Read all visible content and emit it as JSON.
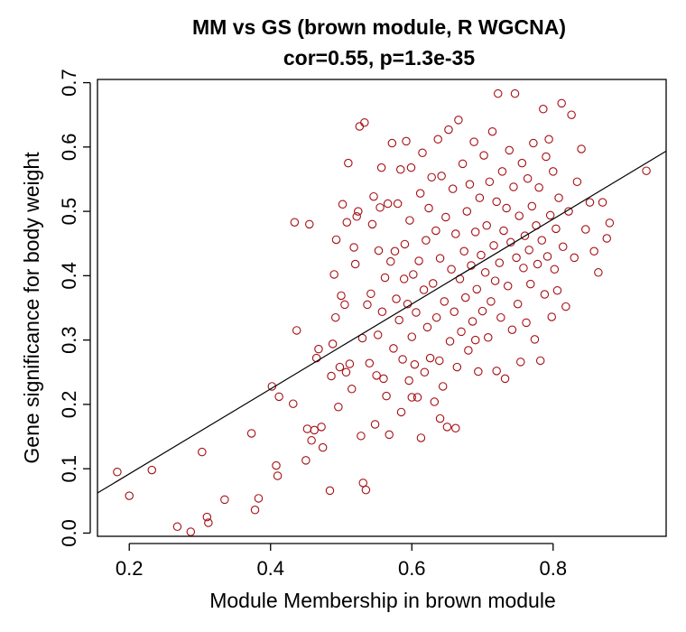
{
  "chart_data": {
    "type": "scatter",
    "title": "MM vs GS (brown module, R WGCNA)",
    "subtitle": "cor=0.55, p=1.3e-35",
    "xlabel": "Module Membership in brown module",
    "ylabel": "Gene significance for body weight",
    "xlim": [
      0.155,
      0.96
    ],
    "ylim": [
      -0.005,
      0.705
    ],
    "xticks": [
      "0.2",
      "0.4",
      "0.6",
      "0.8"
    ],
    "yticks": [
      "0.0",
      "0.1",
      "0.2",
      "0.3",
      "0.4",
      "0.5",
      "0.6",
      "0.7"
    ],
    "point_color": "#a50f15",
    "line_color": "#000000",
    "fit_line": {
      "slope": 0.66,
      "intercept": -0.04
    },
    "grid": false,
    "legend": "none",
    "points": [
      [
        0.183,
        0.095
      ],
      [
        0.2,
        0.058
      ],
      [
        0.232,
        0.098
      ],
      [
        0.268,
        0.01
      ],
      [
        0.287,
        0.002
      ],
      [
        0.303,
        0.126
      ],
      [
        0.31,
        0.025
      ],
      [
        0.312,
        0.016
      ],
      [
        0.335,
        0.052
      ],
      [
        0.373,
        0.155
      ],
      [
        0.378,
        0.036
      ],
      [
        0.383,
        0.054
      ],
      [
        0.402,
        0.228
      ],
      [
        0.408,
        0.105
      ],
      [
        0.41,
        0.089
      ],
      [
        0.412,
        0.212
      ],
      [
        0.432,
        0.201
      ],
      [
        0.434,
        0.483
      ],
      [
        0.437,
        0.315
      ],
      [
        0.45,
        0.113
      ],
      [
        0.452,
        0.162
      ],
      [
        0.455,
        0.48
      ],
      [
        0.458,
        0.144
      ],
      [
        0.462,
        0.16
      ],
      [
        0.465,
        0.272
      ],
      [
        0.468,
        0.286
      ],
      [
        0.472,
        0.165
      ],
      [
        0.474,
        0.133
      ],
      [
        0.484,
        0.066
      ],
      [
        0.486,
        0.244
      ],
      [
        0.488,
        0.294
      ],
      [
        0.49,
        0.402
      ],
      [
        0.492,
        0.335
      ],
      [
        0.493,
        0.456
      ],
      [
        0.496,
        0.196
      ],
      [
        0.498,
        0.258
      ],
      [
        0.5,
        0.369
      ],
      [
        0.502,
        0.511
      ],
      [
        0.505,
        0.355
      ],
      [
        0.507,
        0.25
      ],
      [
        0.508,
        0.483
      ],
      [
        0.51,
        0.575
      ],
      [
        0.512,
        0.263
      ],
      [
        0.515,
        0.224
      ],
      [
        0.518,
        0.444
      ],
      [
        0.52,
        0.418
      ],
      [
        0.522,
        0.492
      ],
      [
        0.524,
        0.5
      ],
      [
        0.526,
        0.632
      ],
      [
        0.528,
        0.151
      ],
      [
        0.53,
        0.303
      ],
      [
        0.531,
        0.078
      ],
      [
        0.533,
        0.638
      ],
      [
        0.535,
        0.067
      ],
      [
        0.537,
        0.355
      ],
      [
        0.54,
        0.264
      ],
      [
        0.542,
        0.372
      ],
      [
        0.544,
        0.48
      ],
      [
        0.546,
        0.523
      ],
      [
        0.548,
        0.169
      ],
      [
        0.55,
        0.245
      ],
      [
        0.552,
        0.308
      ],
      [
        0.553,
        0.439
      ],
      [
        0.555,
        0.506
      ],
      [
        0.557,
        0.568
      ],
      [
        0.558,
        0.344
      ],
      [
        0.56,
        0.24
      ],
      [
        0.562,
        0.397
      ],
      [
        0.564,
        0.213
      ],
      [
        0.566,
        0.512
      ],
      [
        0.568,
        0.153
      ],
      [
        0.57,
        0.422
      ],
      [
        0.572,
        0.606
      ],
      [
        0.574,
        0.287
      ],
      [
        0.576,
        0.438
      ],
      [
        0.578,
        0.364
      ],
      [
        0.58,
        0.512
      ],
      [
        0.582,
        0.331
      ],
      [
        0.584,
        0.565
      ],
      [
        0.585,
        0.188
      ],
      [
        0.587,
        0.27
      ],
      [
        0.589,
        0.395
      ],
      [
        0.59,
        0.449
      ],
      [
        0.592,
        0.609
      ],
      [
        0.594,
        0.356
      ],
      [
        0.596,
        0.237
      ],
      [
        0.597,
        0.486
      ],
      [
        0.599,
        0.568
      ],
      [
        0.6,
        0.305
      ],
      [
        0.602,
        0.402
      ],
      [
        0.604,
        0.262
      ],
      [
        0.606,
        0.343
      ],
      [
        0.608,
        0.211
      ],
      [
        0.61,
        0.423
      ],
      [
        0.612,
        0.528
      ],
      [
        0.613,
        0.148
      ],
      [
        0.615,
        0.591
      ],
      [
        0.617,
        0.378
      ],
      [
        0.618,
        0.25
      ],
      [
        0.62,
        0.455
      ],
      [
        0.622,
        0.32
      ],
      [
        0.624,
        0.505
      ],
      [
        0.626,
        0.272
      ],
      [
        0.628,
        0.553
      ],
      [
        0.63,
        0.388
      ],
      [
        0.632,
        0.204
      ],
      [
        0.634,
        0.47
      ],
      [
        0.635,
        0.335
      ],
      [
        0.637,
        0.612
      ],
      [
        0.639,
        0.268
      ],
      [
        0.64,
        0.427
      ],
      [
        0.642,
        0.555
      ],
      [
        0.644,
        0.228
      ],
      [
        0.646,
        0.36
      ],
      [
        0.648,
        0.491
      ],
      [
        0.65,
        0.165
      ],
      [
        0.652,
        0.627
      ],
      [
        0.654,
        0.298
      ],
      [
        0.656,
        0.41
      ],
      [
        0.658,
        0.535
      ],
      [
        0.66,
        0.344
      ],
      [
        0.662,
        0.465
      ],
      [
        0.664,
        0.258
      ],
      [
        0.666,
        0.642
      ],
      [
        0.668,
        0.395
      ],
      [
        0.67,
        0.313
      ],
      [
        0.672,
        0.574
      ],
      [
        0.674,
        0.438
      ],
      [
        0.676,
        0.366
      ],
      [
        0.678,
        0.5
      ],
      [
        0.68,
        0.284
      ],
      [
        0.682,
        0.542
      ],
      [
        0.684,
        0.416
      ],
      [
        0.686,
        0.329
      ],
      [
        0.688,
        0.608
      ],
      [
        0.69,
        0.468
      ],
      [
        0.692,
        0.379
      ],
      [
        0.694,
        0.251
      ],
      [
        0.696,
        0.521
      ],
      [
        0.698,
        0.432
      ],
      [
        0.7,
        0.345
      ],
      [
        0.702,
        0.587
      ],
      [
        0.704,
        0.405
      ],
      [
        0.706,
        0.478
      ],
      [
        0.708,
        0.304
      ],
      [
        0.71,
        0.546
      ],
      [
        0.712,
        0.36
      ],
      [
        0.714,
        0.624
      ],
      [
        0.716,
        0.447
      ],
      [
        0.718,
        0.392
      ],
      [
        0.72,
        0.515
      ],
      [
        0.722,
        0.683
      ],
      [
        0.724,
        0.42
      ],
      [
        0.726,
        0.335
      ],
      [
        0.728,
        0.562
      ],
      [
        0.73,
        0.47
      ],
      [
        0.732,
        0.24
      ],
      [
        0.734,
        0.505
      ],
      [
        0.736,
        0.384
      ],
      [
        0.738,
        0.595
      ],
      [
        0.74,
        0.452
      ],
      [
        0.742,
        0.316
      ],
      [
        0.744,
        0.538
      ],
      [
        0.746,
        0.683
      ],
      [
        0.748,
        0.428
      ],
      [
        0.75,
        0.356
      ],
      [
        0.752,
        0.493
      ],
      [
        0.754,
        0.266
      ],
      [
        0.756,
        0.575
      ],
      [
        0.758,
        0.412
      ],
      [
        0.76,
        0.462
      ],
      [
        0.762,
        0.327
      ],
      [
        0.764,
        0.551
      ],
      [
        0.766,
        0.44
      ],
      [
        0.768,
        0.387
      ],
      [
        0.77,
        0.508
      ],
      [
        0.772,
        0.606
      ],
      [
        0.774,
        0.301
      ],
      [
        0.776,
        0.478
      ],
      [
        0.778,
        0.418
      ],
      [
        0.78,
        0.537
      ],
      [
        0.782,
        0.268
      ],
      [
        0.784,
        0.455
      ],
      [
        0.786,
        0.659
      ],
      [
        0.788,
        0.371
      ],
      [
        0.79,
        0.585
      ],
      [
        0.792,
        0.43
      ],
      [
        0.794,
        0.612
      ],
      [
        0.796,
        0.494
      ],
      [
        0.798,
        0.336
      ],
      [
        0.8,
        0.562
      ],
      [
        0.802,
        0.41
      ],
      [
        0.804,
        0.473
      ],
      [
        0.806,
        0.377
      ],
      [
        0.808,
        0.521
      ],
      [
        0.812,
        0.668
      ],
      [
        0.814,
        0.445
      ],
      [
        0.818,
        0.352
      ],
      [
        0.822,
        0.5
      ],
      [
        0.826,
        0.65
      ],
      [
        0.83,
        0.428
      ],
      [
        0.834,
        0.546
      ],
      [
        0.84,
        0.597
      ],
      [
        0.846,
        0.472
      ],
      [
        0.852,
        0.514
      ],
      [
        0.858,
        0.438
      ],
      [
        0.864,
        0.405
      ],
      [
        0.87,
        0.514
      ],
      [
        0.876,
        0.458
      ],
      [
        0.88,
        0.482
      ],
      [
        0.932,
        0.563
      ],
      [
        0.6,
        0.211
      ],
      [
        0.64,
        0.178
      ],
      [
        0.662,
        0.163
      ],
      [
        0.72,
        0.252
      ],
      [
        0.69,
        0.3
      ]
    ]
  }
}
